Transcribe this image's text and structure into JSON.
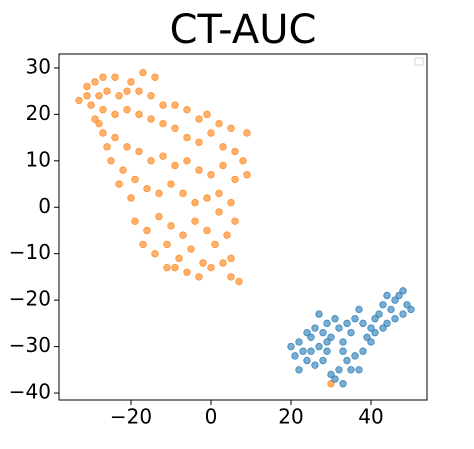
{
  "chart_data": {
    "type": "scatter",
    "title": "CT-AUC",
    "xlim": [
      -38,
      54
    ],
    "ylim": [
      -41.5,
      33
    ],
    "xticks": [
      {
        "value": -20,
        "label": "−20"
      },
      0,
      20,
      40
    ],
    "yticks": [
      {
        "value": -40,
        "label": "−40"
      },
      {
        "value": -30,
        "label": "−30"
      },
      {
        "value": -20,
        "label": "−20"
      },
      {
        "value": -10,
        "label": "−10"
      },
      0,
      10,
      20,
      30
    ],
    "legend": "upper right",
    "series": [
      {
        "color": "#ff7f0e",
        "x": [
          -33,
          -31,
          -29,
          -27,
          -24,
          -20,
          -17,
          -14,
          -30,
          -28,
          -26,
          -23,
          -21,
          -18,
          -15,
          -12,
          -9,
          -6,
          -3,
          -1,
          2,
          5,
          9,
          -29,
          -27,
          -24,
          -21,
          -18,
          -15,
          -12,
          -9,
          -6,
          -3,
          0,
          3,
          6,
          8,
          9,
          -27,
          -24,
          -21,
          -18,
          -15,
          -12,
          -9,
          -6,
          -3,
          0,
          3,
          6,
          -25,
          -22,
          -19,
          -16,
          -13,
          -10,
          -7,
          -4,
          -1,
          2,
          -19,
          -16,
          -13,
          -10,
          -7,
          -4,
          -1,
          2,
          5,
          -17,
          -14,
          -11,
          -8,
          -5,
          -2,
          1,
          4,
          6,
          -9,
          -6,
          -3,
          0,
          3,
          5,
          7,
          5,
          -11,
          -20,
          -23,
          -26,
          -28,
          -31,
          30
        ],
        "values": [
          23,
          26,
          27,
          28,
          28,
          27,
          29,
          28,
          22,
          24,
          25,
          24,
          25,
          25,
          24,
          22,
          22,
          21,
          19,
          20,
          18,
          17,
          16,
          19,
          21,
          20,
          21,
          20,
          19,
          18,
          17,
          15,
          14,
          16,
          13,
          12,
          10,
          7,
          16,
          15,
          13,
          12,
          10,
          11,
          9,
          10,
          8,
          7,
          9,
          6,
          10,
          8,
          6,
          4,
          3,
          5,
          3,
          1,
          2,
          3,
          -3,
          -5,
          -2,
          -4,
          -6,
          -3,
          -5,
          -1,
          1,
          -8,
          -10,
          -8,
          -11,
          -9,
          -12,
          -8,
          -6,
          -3,
          -13,
          -14,
          -15,
          -13,
          -12,
          -15,
          -16,
          -11,
          -13,
          2,
          5,
          13,
          18,
          24,
          -38
        ]
      },
      {
        "color": "#1f77b4",
        "x": [
          20,
          21,
          22,
          23,
          24,
          25,
          26,
          27,
          28,
          29,
          30,
          31,
          32,
          33,
          34,
          35,
          36,
          37,
          38,
          39,
          40,
          41,
          42,
          43,
          44,
          45,
          46,
          47,
          48,
          49,
          50,
          46,
          43,
          40,
          38,
          36,
          34,
          32,
          30,
          28,
          26,
          24,
          22,
          25,
          29,
          33,
          35,
          31,
          33,
          37,
          29,
          27,
          48,
          44,
          41
        ],
        "values": [
          -30,
          -32,
          -29,
          -31,
          -27,
          -28,
          -26,
          -30,
          -27,
          -25,
          -28,
          -24,
          -26,
          -29,
          -25,
          -27,
          -24,
          -22,
          -25,
          -28,
          -26,
          -24,
          -23,
          -21,
          -25,
          -22,
          -20,
          -19,
          -18,
          -21,
          -22,
          -24,
          -26,
          -29,
          -31,
          -32,
          -33,
          -35,
          -36,
          -33,
          -34,
          -33,
          -35,
          -31,
          -31,
          -31,
          -35,
          -37,
          -38,
          -35,
          -29,
          -23,
          -23,
          -19,
          -27
        ]
      }
    ]
  }
}
